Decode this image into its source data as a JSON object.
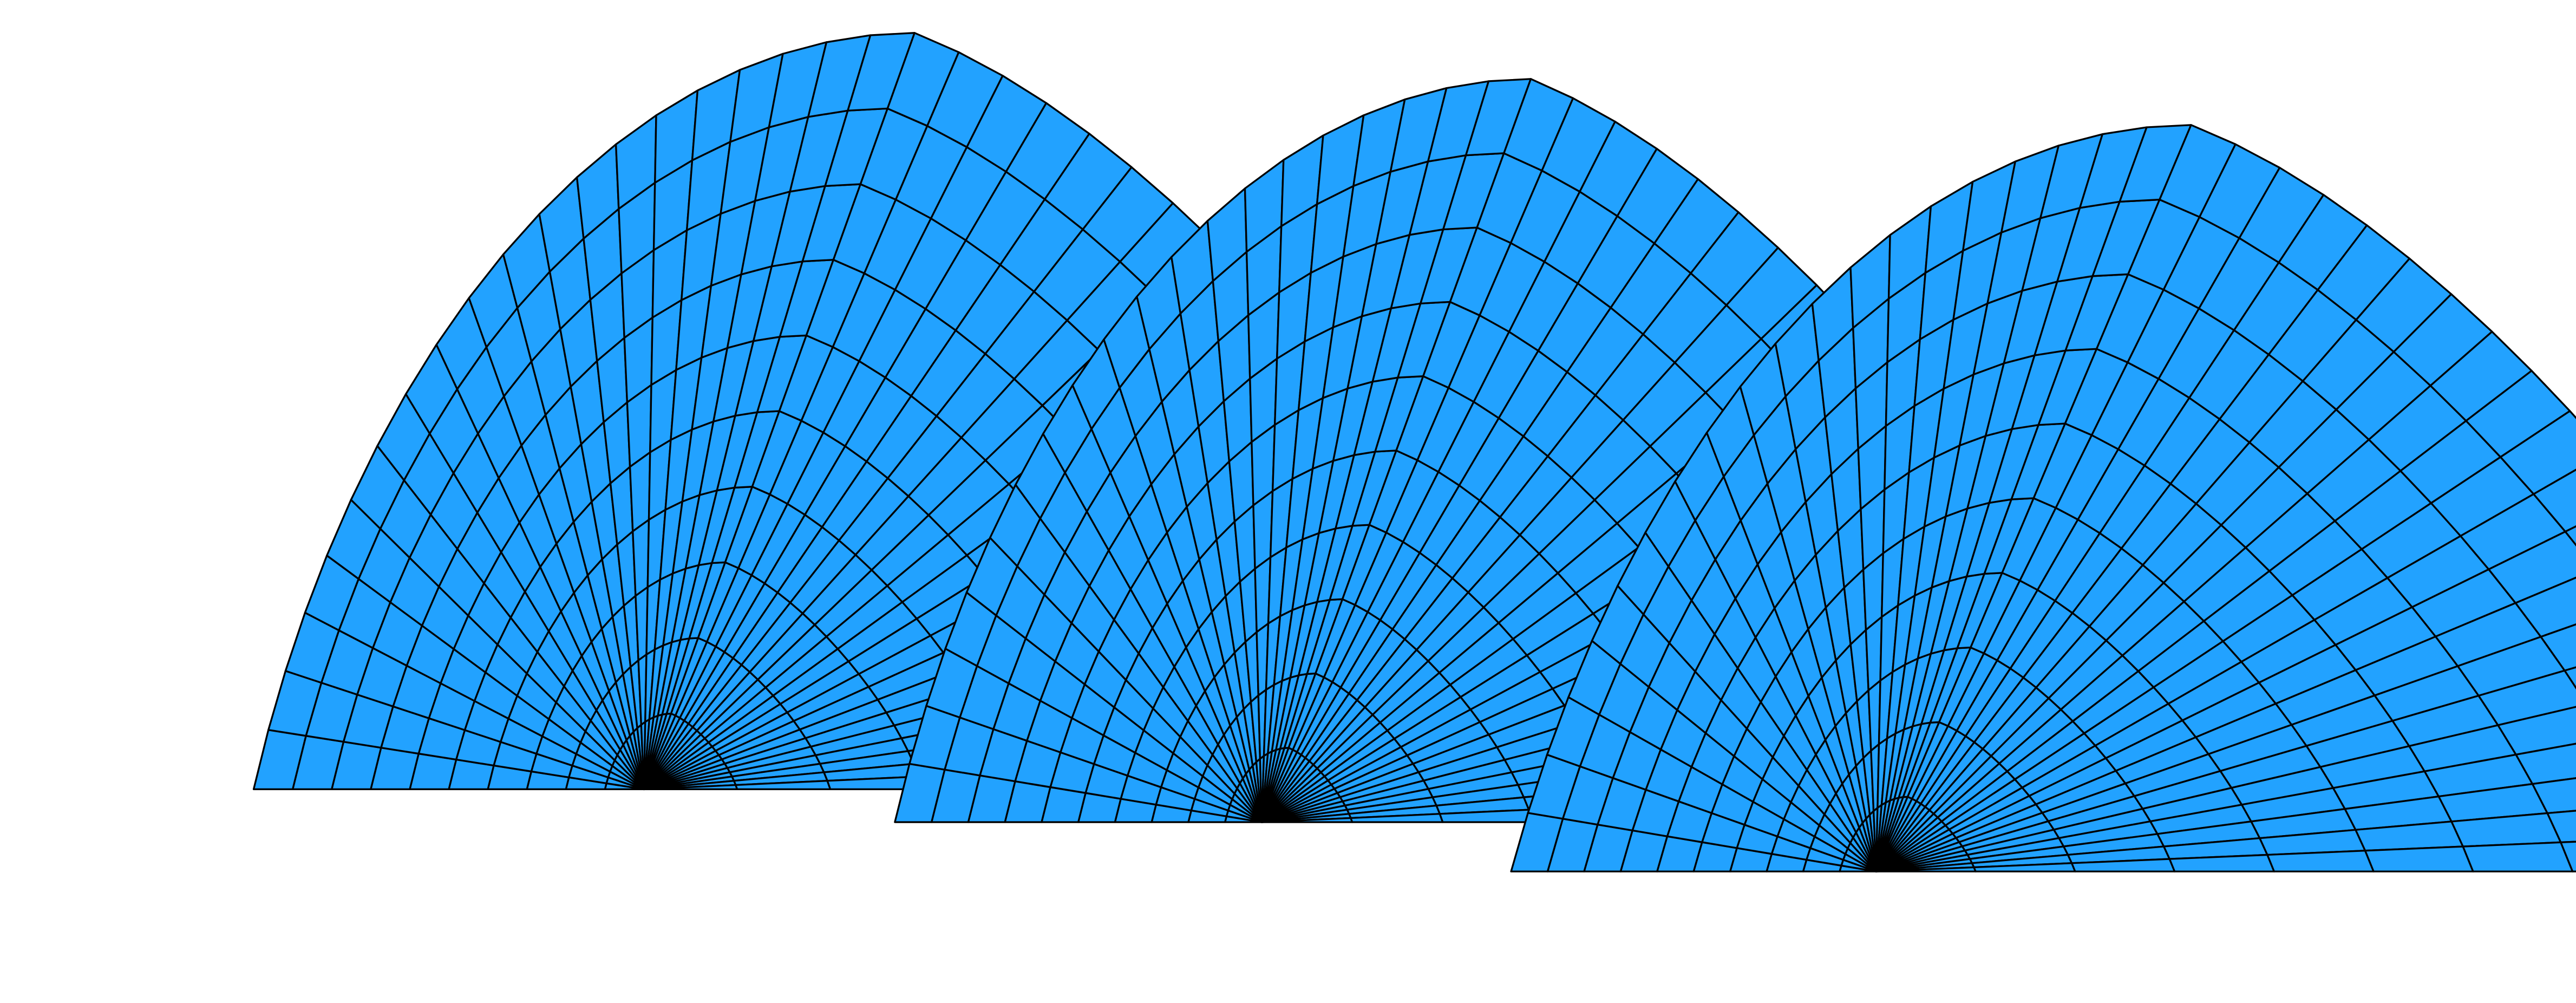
{
  "figure": {
    "kind": "3d-parametric-surface-render",
    "description_visible_text": "",
    "colors": {
      "face_fill": "#22a2ff",
      "mesh_line": "#000000",
      "background": "#ffffff"
    },
    "turns": 3,
    "mesh": {
      "radial_divisions": 10,
      "angular_divisions_per_turn": 40
    }
  }
}
